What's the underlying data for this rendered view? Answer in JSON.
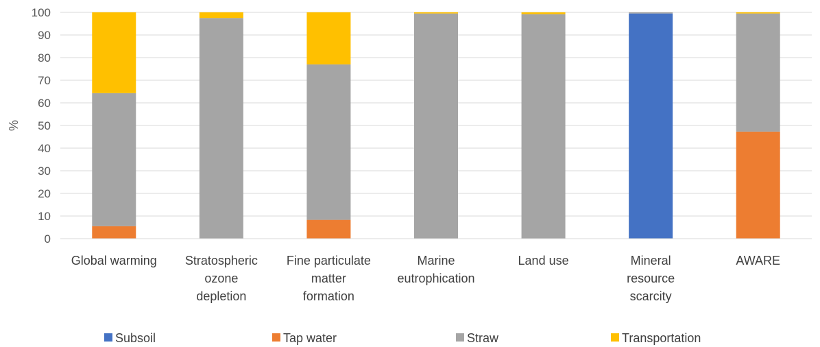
{
  "chart_data": {
    "type": "bar",
    "stacked": true,
    "percent_stacked": true,
    "categories": [
      [
        "Global warming"
      ],
      [
        "Stratospheric",
        "ozone",
        "depletion"
      ],
      [
        "Fine particulate",
        "matter",
        "formation"
      ],
      [
        "Marine",
        "eutrophication"
      ],
      [
        "Land use"
      ],
      [
        "Mineral",
        "resource",
        "scarcity"
      ],
      [
        "AWARE"
      ]
    ],
    "series": [
      {
        "name": "Subsoil",
        "color": "#4472C4",
        "values": [
          0,
          0,
          0,
          0,
          0,
          99.5,
          0
        ]
      },
      {
        "name": "Tap water",
        "color": "#ED7D31",
        "values": [
          5.5,
          0,
          8.3,
          0,
          0,
          0,
          47.3
        ]
      },
      {
        "name": "Straw",
        "color": "#A5A5A5",
        "values": [
          58.8,
          97.5,
          68.7,
          99.5,
          99.2,
          0.5,
          52.2
        ]
      },
      {
        "name": "Transportation",
        "color": "#FFC000",
        "values": [
          35.7,
          2.5,
          23.0,
          0.5,
          0.8,
          0,
          0.5
        ]
      }
    ],
    "ylabel": "%",
    "ylim": [
      0,
      100
    ],
    "yticks": [
      0,
      10,
      20,
      30,
      40,
      50,
      60,
      70,
      80,
      90,
      100
    ],
    "grid": true,
    "legend": "bottom"
  }
}
